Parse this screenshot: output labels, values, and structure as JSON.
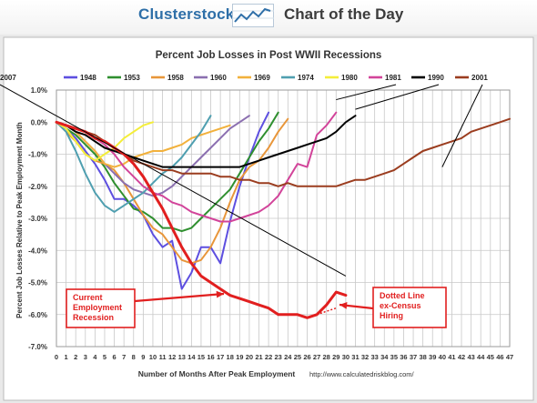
{
  "header": {
    "brand": "Clusterstock",
    "subtitle": "Chart of the Day",
    "brand_color": "#2e6fa8",
    "logo_icon": "rising-line-chart-icon"
  },
  "chart_data": {
    "type": "line",
    "title": "Percent Job Losses in Post WWII Recessions",
    "xlabel": "Number of Months After Peak Employment",
    "ylabel": "Percent Job Losses Relative to Peak Employment Month",
    "source": "http://www.calculatedriskblog.com/",
    "xlim": [
      0,
      47
    ],
    "ylim": [
      -7.0,
      1.0
    ],
    "x_ticks": [
      0,
      1,
      2,
      3,
      4,
      5,
      6,
      7,
      8,
      9,
      10,
      11,
      12,
      13,
      14,
      15,
      16,
      17,
      18,
      19,
      20,
      21,
      22,
      23,
      24,
      25,
      26,
      27,
      28,
      29,
      30,
      31,
      32,
      33,
      34,
      35,
      36,
      37,
      38,
      39,
      40,
      41,
      42,
      43,
      44,
      45,
      46,
      47
    ],
    "y_ticks": [
      1.0,
      0.0,
      -1.0,
      -2.0,
      -3.0,
      -4.0,
      -5.0,
      -6.0,
      -7.0
    ],
    "y_tick_labels": [
      "1.0%",
      "0.0%",
      "-1.0%",
      "-2.0%",
      "-3.0%",
      "-4.0%",
      "-5.0%",
      "-6.0%",
      "-7.0%"
    ],
    "grid": true,
    "legend_position": "top",
    "series": [
      {
        "name": "1948",
        "color": "#5d4fe0",
        "x": [
          0,
          1,
          2,
          3,
          4,
          5,
          6,
          7,
          8,
          9,
          10,
          11,
          12,
          13,
          14,
          15,
          16,
          17,
          18,
          19,
          20,
          21,
          22
        ],
        "y": [
          0,
          -0.2,
          -0.5,
          -0.9,
          -1.3,
          -1.8,
          -2.4,
          -2.4,
          -2.6,
          -2.9,
          -3.5,
          -3.9,
          -3.7,
          -5.2,
          -4.7,
          -3.9,
          -3.9,
          -4.4,
          -3.1,
          -2.0,
          -1.1,
          -0.3,
          0.3
        ]
      },
      {
        "name": "1953",
        "color": "#2f8f2f",
        "x": [
          0,
          1,
          2,
          3,
          4,
          5,
          6,
          7,
          8,
          9,
          10,
          11,
          12,
          13,
          14,
          15,
          16,
          17,
          18,
          19,
          20,
          21,
          22,
          23
        ],
        "y": [
          0,
          -0.2,
          -0.4,
          -0.7,
          -1.0,
          -1.4,
          -1.9,
          -2.3,
          -2.7,
          -2.8,
          -3.0,
          -3.3,
          -3.3,
          -3.4,
          -3.3,
          -3.0,
          -2.7,
          -2.4,
          -2.1,
          -1.6,
          -1.1,
          -0.6,
          -0.2,
          0.3
        ]
      },
      {
        "name": "1958",
        "color": "#e8963a",
        "x": [
          0,
          1,
          2,
          3,
          4,
          5,
          6,
          7,
          8,
          9,
          10,
          11,
          12,
          13,
          14,
          15,
          16,
          17,
          18,
          19,
          20,
          21,
          22,
          23,
          24
        ],
        "y": [
          0,
          -0.3,
          -0.6,
          -1.0,
          -1.2,
          -1.3,
          -1.5,
          -1.9,
          -2.4,
          -2.9,
          -3.3,
          -3.5,
          -3.9,
          -4.3,
          -4.4,
          -4.3,
          -3.9,
          -3.3,
          -2.5,
          -1.8,
          -1.4,
          -1.2,
          -0.8,
          -0.3,
          0.1
        ]
      },
      {
        "name": "1960",
        "color": "#8b6fb0",
        "x": [
          0,
          1,
          2,
          3,
          4,
          5,
          6,
          7,
          8,
          9,
          10,
          11,
          12,
          13,
          14,
          15,
          16,
          17,
          18,
          19,
          20
        ],
        "y": [
          0,
          -0.1,
          -0.3,
          -0.6,
          -0.9,
          -1.3,
          -1.6,
          -1.9,
          -2.1,
          -2.2,
          -2.3,
          -2.2,
          -2.0,
          -1.7,
          -1.4,
          -1.1,
          -0.8,
          -0.5,
          -0.2,
          0.0,
          0.2
        ]
      },
      {
        "name": "1969",
        "color": "#f2b13c",
        "x": [
          0,
          1,
          2,
          3,
          4,
          5,
          6,
          7,
          8,
          9,
          10,
          11,
          12,
          13,
          14,
          15,
          16,
          17,
          18
        ],
        "y": [
          0,
          -0.1,
          -0.3,
          -0.6,
          -0.9,
          -1.3,
          -1.4,
          -1.3,
          -1.1,
          -1.0,
          -0.9,
          -0.9,
          -0.8,
          -0.7,
          -0.5,
          -0.4,
          -0.3,
          -0.2,
          -0.1
        ]
      },
      {
        "name": "1974",
        "color": "#4f9fb0",
        "x": [
          0,
          1,
          2,
          3,
          4,
          5,
          6,
          7,
          8,
          9,
          10,
          11,
          12,
          13,
          14,
          15,
          16
        ],
        "y": [
          0,
          -0.3,
          -0.9,
          -1.6,
          -2.2,
          -2.6,
          -2.8,
          -2.6,
          -2.4,
          -2.2,
          -1.9,
          -1.6,
          -1.4,
          -1.1,
          -0.7,
          -0.3,
          0.2
        ]
      },
      {
        "name": "1980",
        "color": "#f4ee3a",
        "x": [
          0,
          1,
          2,
          3,
          4,
          5,
          6,
          7,
          8,
          9,
          10
        ],
        "y": [
          0,
          -0.2,
          -0.6,
          -1.0,
          -1.2,
          -1.0,
          -0.8,
          -0.5,
          -0.3,
          -0.1,
          0.0
        ]
      },
      {
        "name": "1981",
        "color": "#d2449a",
        "x": [
          0,
          1,
          2,
          3,
          4,
          5,
          6,
          7,
          8,
          9,
          10,
          11,
          12,
          13,
          14,
          15,
          16,
          17,
          18,
          19,
          20,
          21,
          22,
          23,
          24,
          25,
          26,
          27,
          28,
          29
        ],
        "y": [
          0,
          -0.1,
          -0.2,
          -0.3,
          -0.5,
          -0.7,
          -1.0,
          -1.4,
          -1.7,
          -2.0,
          -2.2,
          -2.3,
          -2.5,
          -2.6,
          -2.8,
          -2.9,
          -3.0,
          -3.1,
          -3.1,
          -3.0,
          -2.9,
          -2.8,
          -2.6,
          -2.3,
          -1.8,
          -1.3,
          -1.4,
          -0.4,
          -0.1,
          0.3
        ]
      },
      {
        "name": "1990",
        "color": "#000000",
        "x": [
          0,
          1,
          2,
          3,
          4,
          5,
          6,
          7,
          8,
          9,
          10,
          11,
          12,
          13,
          14,
          15,
          16,
          17,
          18,
          19,
          20,
          21,
          22,
          23,
          24,
          25,
          26,
          27,
          28,
          29,
          30,
          31
        ],
        "y": [
          0,
          -0.1,
          -0.3,
          -0.4,
          -0.6,
          -0.8,
          -0.9,
          -1.0,
          -1.1,
          -1.2,
          -1.3,
          -1.4,
          -1.4,
          -1.4,
          -1.4,
          -1.4,
          -1.4,
          -1.4,
          -1.4,
          -1.4,
          -1.3,
          -1.2,
          -1.1,
          -1.0,
          -0.9,
          -0.8,
          -0.7,
          -0.6,
          -0.5,
          -0.3,
          0.0,
          0.2
        ]
      },
      {
        "name": "2001",
        "color": "#9b3d1f",
        "x": [
          0,
          1,
          2,
          3,
          4,
          5,
          6,
          7,
          8,
          9,
          10,
          11,
          12,
          13,
          14,
          15,
          16,
          17,
          18,
          19,
          20,
          21,
          22,
          23,
          24,
          25,
          26,
          27,
          28,
          29,
          30,
          31,
          32,
          33,
          34,
          35,
          36,
          37,
          38,
          39,
          40,
          41,
          42,
          43,
          44,
          45,
          46,
          47
        ],
        "y": [
          0,
          -0.1,
          -0.2,
          -0.3,
          -0.4,
          -0.6,
          -0.8,
          -1.0,
          -1.2,
          -1.3,
          -1.4,
          -1.5,
          -1.5,
          -1.6,
          -1.6,
          -1.6,
          -1.6,
          -1.7,
          -1.7,
          -1.8,
          -1.8,
          -1.9,
          -1.9,
          -2.0,
          -1.9,
          -2.0,
          -2.0,
          -2.0,
          -2.0,
          -2.0,
          -1.9,
          -1.8,
          -1.8,
          -1.7,
          -1.6,
          -1.5,
          -1.3,
          -1.1,
          -0.9,
          -0.8,
          -0.7,
          -0.6,
          -0.5,
          -0.3,
          -0.2,
          -0.1,
          0.0,
          0.1
        ]
      },
      {
        "name": "2007",
        "color": "#e11f1f",
        "x": [
          0,
          1,
          2,
          3,
          4,
          5,
          6,
          7,
          8,
          9,
          10,
          11,
          12,
          13,
          14,
          15,
          16,
          17,
          18,
          19,
          20,
          21,
          22,
          23,
          24,
          25,
          26,
          27,
          28,
          29,
          30
        ],
        "y": [
          0,
          -0.1,
          -0.2,
          -0.3,
          -0.5,
          -0.6,
          -0.8,
          -1.0,
          -1.3,
          -1.7,
          -2.2,
          -2.7,
          -3.3,
          -3.9,
          -4.4,
          -4.8,
          -5.0,
          -5.2,
          -5.4,
          -5.5,
          -5.6,
          -5.7,
          -5.8,
          -6.0,
          -6.0,
          -6.0,
          -6.1,
          -6.0,
          -5.7,
          -5.3,
          -5.4
        ],
        "dotted_x": [
          27,
          28,
          29
        ],
        "dotted_y": [
          -6.0,
          -5.9,
          -5.8
        ]
      }
    ],
    "annotations": {
      "current_label": [
        "Current",
        "Employment",
        "Recession"
      ],
      "dotted_label": [
        "Dotted Line",
        "ex-Census",
        "Hiring"
      ]
    }
  }
}
